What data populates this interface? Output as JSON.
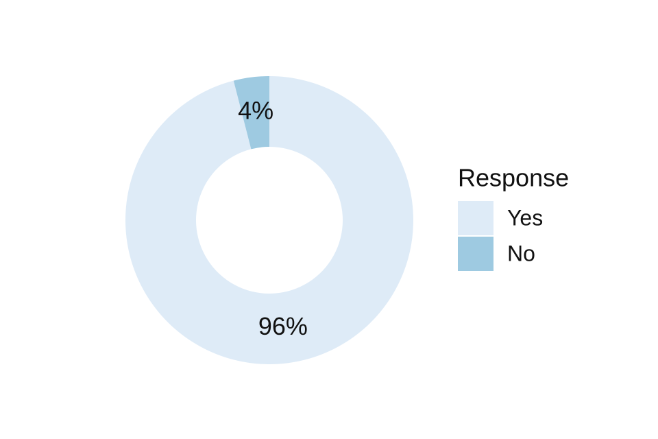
{
  "chart_data": {
    "type": "donut",
    "categories": [
      "Yes",
      "No"
    ],
    "values": [
      96,
      4
    ],
    "value_labels": [
      "96%",
      "4%"
    ],
    "colors": [
      "#deebf7",
      "#9ecae1"
    ],
    "legend_title": "Response",
    "legend": "right"
  }
}
